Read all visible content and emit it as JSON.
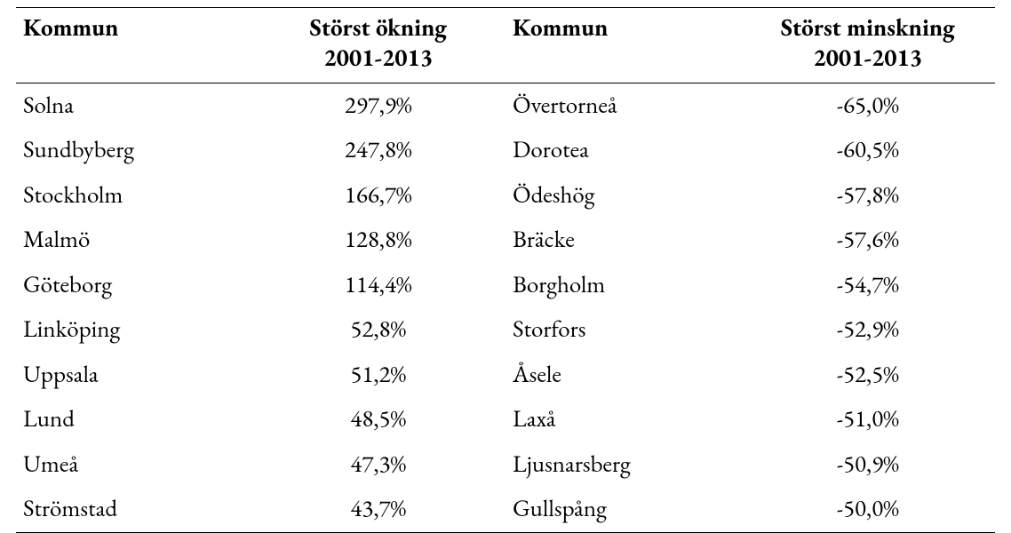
{
  "table": {
    "type": "table",
    "font_family": "Garamond serif",
    "header_fontsize": 27,
    "body_fontsize": 27,
    "rule_color": "#000000",
    "background_color": "#ffffff",
    "text_color": "#000000",
    "columns": [
      {
        "key": "kommun_a",
        "label": "Kommun",
        "align": "left",
        "width_pct": 24
      },
      {
        "key": "value_a",
        "label_line1": "Störst ökning",
        "label_line2": "2001-2013",
        "align": "center",
        "width_pct": 26
      },
      {
        "key": "kommun_b",
        "label": "Kommun",
        "align": "left",
        "width_pct": 24
      },
      {
        "key": "value_b",
        "label_line1": "Störst minskning",
        "label_line2": "2001-2013",
        "align": "center",
        "width_pct": 26
      }
    ],
    "rows": [
      {
        "kommun_a": "Solna",
        "value_a": "297,9%",
        "kommun_b": "Övertorneå",
        "value_b": "-65,0%"
      },
      {
        "kommun_a": "Sundbyberg",
        "value_a": "247,8%",
        "kommun_b": "Dorotea",
        "value_b": "-60,5%"
      },
      {
        "kommun_a": "Stockholm",
        "value_a": "166,7%",
        "kommun_b": "Ödeshög",
        "value_b": "-57,8%"
      },
      {
        "kommun_a": "Malmö",
        "value_a": "128,8%",
        "kommun_b": "Bräcke",
        "value_b": "-57,6%"
      },
      {
        "kommun_a": "Göteborg",
        "value_a": "114,4%",
        "kommun_b": "Borgholm",
        "value_b": "-54,7%"
      },
      {
        "kommun_a": "Linköping",
        "value_a": "52,8%",
        "kommun_b": "Storfors",
        "value_b": "-52,9%"
      },
      {
        "kommun_a": "Uppsala",
        "value_a": "51,2%",
        "kommun_b": "Åsele",
        "value_b": "-52,5%"
      },
      {
        "kommun_a": "Lund",
        "value_a": "48,5%",
        "kommun_b": "Laxå",
        "value_b": "-51,0%"
      },
      {
        "kommun_a": "Umeå",
        "value_a": "47,3%",
        "kommun_b": "Ljusnarsberg",
        "value_b": "-50,9%"
      },
      {
        "kommun_a": "Strömstad",
        "value_a": "43,7%",
        "kommun_b": "Gullspång",
        "value_b": "-50,0%"
      }
    ]
  }
}
